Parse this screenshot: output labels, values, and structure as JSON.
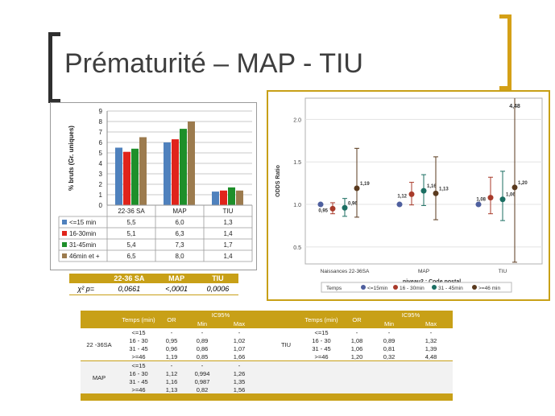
{
  "title": "Prématurité – MAP - TIU",
  "colors": {
    "accent": "#c8a017",
    "s1": "#4f81bd",
    "s2": "#e0241b",
    "s3": "#1e8f2a",
    "s4": "#9c7b4e",
    "r1": "#4e5f9e",
    "r2": "#a83a2a",
    "r3": "#1b6e62",
    "r4": "#5a3a1e"
  },
  "left_table": {
    "rows": [
      {
        "label": "<=15 min",
        "values": [
          "5,5",
          "6,0",
          "1,3"
        ]
      },
      {
        "label": "16-30min",
        "values": [
          "5,1",
          "6,3",
          "1,4"
        ]
      },
      {
        "label": "31-45min",
        "values": [
          "5,4",
          "7,3",
          "1,7"
        ]
      },
      {
        "label": "46min et +",
        "values": [
          "6,5",
          "8,0",
          "1,4"
        ]
      }
    ]
  },
  "chi": {
    "headers": [
      "",
      "22-36 SA",
      "MAP",
      "TIU"
    ],
    "row": [
      "χ² p=",
      "0,0661",
      "<,0001",
      "0,0006"
    ]
  },
  "chart_data": [
    {
      "type": "bar",
      "ylabel": "% bruts (Gr. uniques)",
      "ylim": [
        0,
        9
      ],
      "yticks": [
        0,
        1,
        2,
        3,
        4,
        5,
        6,
        7,
        8,
        9
      ],
      "categories": [
        "22-36 SA",
        "MAP",
        "TIU"
      ],
      "series": [
        {
          "name": "<=15 min",
          "values": [
            5.5,
            6.0,
            1.3
          ]
        },
        {
          "name": "16-30min",
          "values": [
            5.1,
            6.3,
            1.4
          ]
        },
        {
          "name": "31-45min",
          "values": [
            5.4,
            7.3,
            1.7
          ]
        },
        {
          "name": "46min et +",
          "values": [
            6.5,
            8.0,
            1.4
          ]
        }
      ],
      "grid": true
    },
    {
      "type": "scatter",
      "ylabel": "ODDS Ratio",
      "xlabel": "niveau2 : Code postal",
      "ylim": [
        0.3,
        2.25
      ],
      "yticks": [
        "0.5",
        "1.0",
        "1.5",
        "2.0"
      ],
      "categories": [
        "Naissances 22-36SA",
        "MAP",
        "TIU"
      ],
      "legend_title": "Temps",
      "legend_position": "bottom",
      "series": [
        {
          "name": "<=15min",
          "or": [
            1.0,
            1.0,
            1.0
          ],
          "lo": [
            null,
            null,
            null
          ],
          "hi": [
            null,
            null,
            null
          ]
        },
        {
          "name": "16 - 30min",
          "or": [
            0.95,
            1.12,
            1.08
          ],
          "lo": [
            0.89,
            0.994,
            0.89
          ],
          "hi": [
            1.02,
            1.26,
            1.32
          ]
        },
        {
          "name": "31 - 45min",
          "or": [
            0.96,
            1.16,
            1.06
          ],
          "lo": [
            0.86,
            0.987,
            0.81
          ],
          "hi": [
            1.07,
            1.35,
            1.39
          ]
        },
        {
          "name": ">=46 min",
          "or": [
            1.19,
            1.13,
            1.2
          ],
          "lo": [
            0.85,
            0.82,
            0.32
          ],
          "hi": [
            1.66,
            1.56,
            4.48
          ]
        }
      ],
      "point_labels": [
        [
          "",
          "0,95",
          "0,96",
          "1,19"
        ],
        [
          "",
          "1,12",
          "1,16",
          "1,13"
        ],
        [
          "",
          "1,08",
          "1,06",
          "1,20"
        ]
      ],
      "top_label": "4,48"
    }
  ],
  "bottom_table": {
    "headers": {
      "temps": "Temps (min)",
      "or": "OR",
      "ic": "IC95%",
      "min": "Min",
      "max": "Max"
    },
    "left": [
      {
        "group": "22 -36SA",
        "rows": [
          [
            "<=15",
            "-",
            "-",
            "-"
          ],
          [
            "16 - 30",
            "0,95",
            "0,89",
            "1,02"
          ],
          [
            "31 - 45",
            "0,96",
            "0,86",
            "1,07"
          ],
          [
            ">=46",
            "1,19",
            "0,85",
            "1,66"
          ]
        ]
      },
      {
        "group": "MAP",
        "rows": [
          [
            "<=15",
            "-",
            "-",
            "-"
          ],
          [
            "16 - 30",
            "1,12",
            "0,994",
            "1,26"
          ],
          [
            "31 - 45",
            "1,16",
            "0,987",
            "1,35"
          ],
          [
            ">=46",
            "1,13",
            "0,82",
            "1,56"
          ]
        ]
      }
    ],
    "right": [
      {
        "group": "TIU",
        "rows": [
          [
            "<=15",
            "-",
            "-",
            "-"
          ],
          [
            "16 - 30",
            "1,08",
            "0,89",
            "1,32"
          ],
          [
            "31 - 45",
            "1,06",
            "0,81",
            "1,39"
          ],
          [
            ">=46",
            "1,20",
            "0,32",
            "4,48"
          ]
        ]
      }
    ]
  }
}
